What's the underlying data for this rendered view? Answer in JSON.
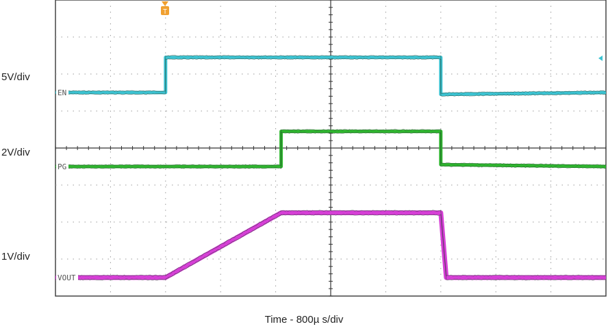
{
  "chart_data": {
    "type": "line",
    "title": "",
    "xlabel": "Time - 800µ s/div",
    "x_divisions": 10,
    "y_divisions": 8,
    "trigger_marker": "T",
    "series": [
      {
        "name": "EN",
        "scale": "5V/div",
        "color": "#3cc3d2",
        "x_div": [
          0,
          2.0,
          2.0,
          7.0,
          7.0,
          10.0
        ],
        "y_div": [
          1.5,
          1.5,
          2.45,
          2.45,
          1.45,
          1.5
        ]
      },
      {
        "name": "PG",
        "scale": "2V/div",
        "color": "#2fb52f",
        "x_div": [
          0,
          4.1,
          4.1,
          7.0,
          7.0,
          10.0
        ],
        "y_div": [
          -0.5,
          -0.5,
          0.45,
          0.45,
          -0.45,
          -0.5
        ]
      },
      {
        "name": "VOUT",
        "scale": "1V/div",
        "color": "#d63fd6",
        "x_div": [
          0,
          2.0,
          4.1,
          7.0,
          7.1,
          10.0
        ],
        "y_div": [
          -3.5,
          -3.5,
          -1.75,
          -1.75,
          -3.5,
          -3.5
        ]
      }
    ]
  }
}
